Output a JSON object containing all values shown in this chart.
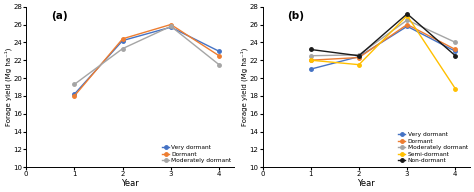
{
  "panel_a": {
    "label": "(a)",
    "years": [
      1,
      2,
      3,
      4
    ],
    "series": [
      {
        "name": "Very dormant",
        "color": "#4472C4",
        "values": [
          18.2,
          24.2,
          25.7,
          23.0
        ]
      },
      {
        "name": "Dormant",
        "color": "#ED7D31",
        "values": [
          18.0,
          24.4,
          26.0,
          22.5
        ]
      },
      {
        "name": "Moderately dormant",
        "color": "#A5A5A5",
        "values": [
          19.3,
          23.3,
          25.8,
          21.5
        ]
      }
    ],
    "ylim": [
      10,
      28
    ],
    "yticks": [
      10,
      12,
      14,
      16,
      18,
      20,
      22,
      24,
      26,
      28
    ],
    "xlim": [
      0,
      4.3
    ],
    "xticks": [
      0,
      1,
      2,
      3,
      4
    ],
    "xlabel": "Year",
    "ylabel": "Forage yield (Mg ha⁻¹)"
  },
  "panel_b": {
    "label": "(b)",
    "years": [
      1,
      2,
      3,
      4
    ],
    "series": [
      {
        "name": "Very dormant",
        "color": "#4472C4",
        "values": [
          21.0,
          22.4,
          25.8,
          23.0
        ]
      },
      {
        "name": "Dormant",
        "color": "#ED7D31",
        "values": [
          22.0,
          22.3,
          26.0,
          23.2
        ]
      },
      {
        "name": "Moderately dormant",
        "color": "#A5A5A5",
        "values": [
          22.5,
          22.6,
          26.5,
          24.0
        ]
      },
      {
        "name": "Semi-dormant",
        "color": "#FFC000",
        "values": [
          22.0,
          21.5,
          27.0,
          18.8
        ]
      },
      {
        "name": "Non-dormant",
        "color": "#1A1A1A",
        "values": [
          23.2,
          22.5,
          27.2,
          22.5
        ]
      }
    ],
    "ylim": [
      10,
      28
    ],
    "yticks": [
      10,
      12,
      14,
      16,
      18,
      20,
      22,
      24,
      26,
      28
    ],
    "xlim": [
      0,
      4.3
    ],
    "xticks": [
      0,
      1,
      2,
      3,
      4
    ],
    "xlabel": "Year",
    "ylabel": "Forage yield (Mg ha⁻¹)"
  }
}
